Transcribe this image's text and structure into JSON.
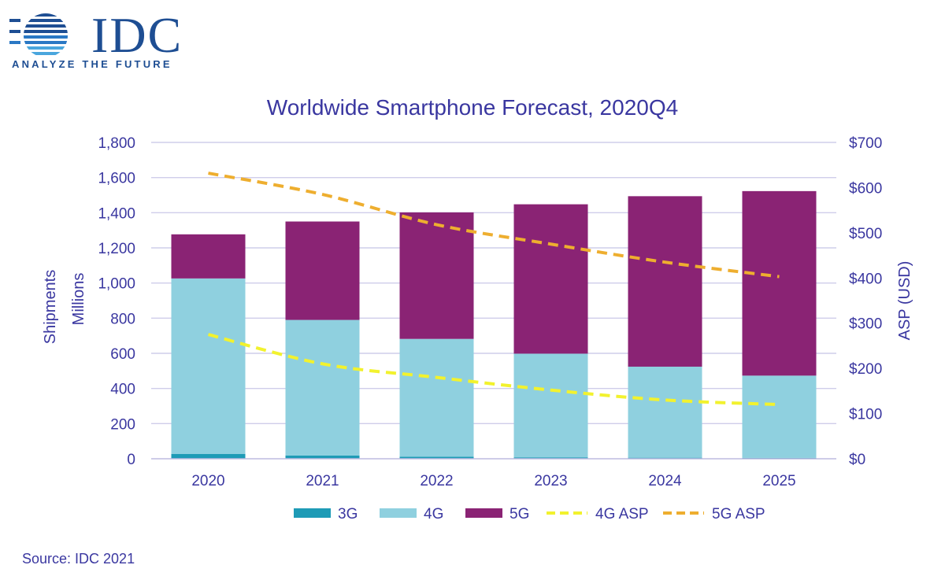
{
  "logo": {
    "word": "IDC",
    "tagline": "ANALYZE THE FUTURE"
  },
  "source": "Source: IDC 2021",
  "colors": {
    "3G": "#1e9bb6",
    "4G": "#8fd0df",
    "5G": "#8a2374",
    "4G ASP": "#f2f22e",
    "5G ASP": "#eeae2f",
    "text": "#3a37a0",
    "grid": "#cfcdea"
  },
  "chart_data": {
    "type": "bar",
    "stacked": true,
    "title": "Worldwide Smartphone Forecast, 2020Q4",
    "ylabel": [
      "Shipments",
      "Millions"
    ],
    "y2label": "ASP (USD)",
    "categories": [
      "2020",
      "2021",
      "2022",
      "2023",
      "2024",
      "2025"
    ],
    "ylim": [
      0,
      1800
    ],
    "yticks": [
      0,
      200,
      400,
      600,
      800,
      1000,
      1200,
      1400,
      1600,
      1800
    ],
    "ytick_labels": [
      "0",
      "200",
      "400",
      "600",
      "800",
      "1,000",
      "1,200",
      "1,400",
      "1,600",
      "1,800"
    ],
    "y2lim": [
      0,
      700
    ],
    "y2ticks": [
      0,
      100,
      200,
      300,
      400,
      500,
      600,
      700
    ],
    "y2tick_labels": [
      "$0",
      "$100",
      "$200",
      "$300",
      "$400",
      "$500",
      "$600",
      "$700"
    ],
    "grid": true,
    "legend_position": "bottom",
    "series": [
      {
        "name": "3G",
        "kind": "bar",
        "axis": "left",
        "values": [
          28,
          18,
          12,
          8,
          6,
          5
        ]
      },
      {
        "name": "4G",
        "kind": "bar",
        "axis": "left",
        "values": [
          998,
          772,
          670,
          590,
          518,
          468
        ]
      },
      {
        "name": "5G",
        "kind": "bar",
        "axis": "left",
        "values": [
          251,
          560,
          720,
          850,
          970,
          1050
        ]
      },
      {
        "name": "4G ASP",
        "kind": "line",
        "axis": "right",
        "style": "dashed",
        "values": [
          275,
          210,
          180,
          152,
          130,
          120
        ]
      },
      {
        "name": "5G ASP",
        "kind": "line",
        "axis": "right",
        "style": "dashed",
        "values": [
          632,
          585,
          518,
          475,
          435,
          403
        ]
      }
    ]
  }
}
